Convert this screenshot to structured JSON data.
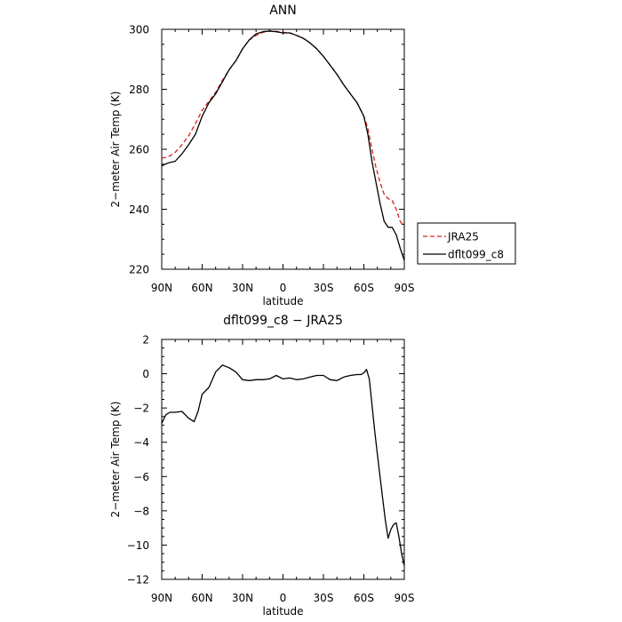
{
  "chart_data": [
    {
      "type": "line",
      "title": "ANN",
      "xlabel": "latitude",
      "ylabel": "2−meter Air Temp (K)",
      "x_tick_labels": [
        "90N",
        "60N",
        "30N",
        "0",
        "30S",
        "60S",
        "90S"
      ],
      "y_tick_labels": [
        "220",
        "240",
        "260",
        "280",
        "300"
      ],
      "xlim": [
        90,
        -90
      ],
      "ylim": [
        220,
        300
      ],
      "grid": false,
      "legend": "right",
      "series": [
        {
          "name": "JRA25",
          "color": "#d62020",
          "dash": "dashed",
          "x": [
            90,
            85,
            80,
            75,
            70,
            65,
            60,
            55,
            50,
            45,
            40,
            35,
            30,
            25,
            20,
            15,
            10,
            5,
            0,
            -5,
            -10,
            -15,
            -20,
            -25,
            -30,
            -35,
            -40,
            -45,
            -50,
            -55,
            -60,
            -63,
            -66,
            -69,
            -72,
            -75,
            -78,
            -81,
            -84,
            -87,
            -90
          ],
          "y": [
            257,
            257.5,
            259,
            261.5,
            264.5,
            268.5,
            273,
            276,
            279,
            283,
            286.5,
            289.5,
            293.5,
            296.5,
            298,
            299,
            299.5,
            299.3,
            299,
            298.8,
            298,
            297,
            295.5,
            293.5,
            291,
            288,
            285,
            281.5,
            278.5,
            275.5,
            271,
            267,
            260,
            254,
            249,
            245,
            243.5,
            243,
            240,
            236,
            234
          ]
        },
        {
          "name": "dflt099_c8",
          "color": "#000000",
          "dash": "solid",
          "x": [
            90,
            85,
            80,
            75,
            70,
            65,
            60,
            55,
            50,
            45,
            40,
            35,
            30,
            25,
            20,
            15,
            10,
            5,
            0,
            -5,
            -10,
            -15,
            -20,
            -25,
            -30,
            -35,
            -40,
            -45,
            -50,
            -55,
            -60,
            -63,
            -66,
            -69,
            -72,
            -75,
            -78,
            -81,
            -84,
            -87,
            -90
          ],
          "y": [
            254.5,
            255.5,
            256,
            258.5,
            261.5,
            265,
            271,
            275.5,
            278.5,
            282.5,
            286.5,
            289.5,
            293.5,
            296.5,
            298.5,
            299.2,
            299.4,
            299.2,
            298.8,
            298.8,
            298,
            297,
            295.5,
            293.5,
            291,
            288,
            285,
            281.5,
            278.5,
            275.5,
            271,
            265,
            256,
            249,
            242,
            236,
            234,
            234,
            231.5,
            227,
            223
          ]
        }
      ]
    },
    {
      "type": "line",
      "title": "dflt099_c8 − JRA25",
      "xlabel": "latitude",
      "ylabel": "2−meter Air Temp (K)",
      "x_tick_labels": [
        "90N",
        "60N",
        "30N",
        "0",
        "30S",
        "60S",
        "90S"
      ],
      "y_tick_labels": [
        "2",
        "0",
        "−2",
        "−4",
        "−6",
        "−8",
        "−10",
        "−12"
      ],
      "xlim": [
        90,
        -90
      ],
      "ylim": [
        -12,
        2
      ],
      "grid": false,
      "series": [
        {
          "color": "#000000",
          "dash": "solid",
          "x": [
            90,
            87,
            84,
            80,
            75,
            70,
            66,
            63,
            60,
            55,
            50,
            45,
            40,
            35,
            30,
            25,
            20,
            15,
            10,
            5,
            0,
            -5,
            -10,
            -15,
            -20,
            -25,
            -30,
            -35,
            -40,
            -45,
            -50,
            -55,
            -58,
            -60,
            -62,
            -64,
            -66,
            -68,
            -70,
            -72,
            -74,
            -76,
            -78,
            -80,
            -82,
            -84,
            -86,
            -88,
            -90
          ],
          "y": [
            -2.9,
            -2.4,
            -2.25,
            -2.25,
            -2.2,
            -2.6,
            -2.8,
            -2.2,
            -1.2,
            -0.8,
            0.1,
            0.5,
            0.35,
            0.1,
            -0.35,
            -0.4,
            -0.35,
            -0.35,
            -0.3,
            -0.1,
            -0.3,
            -0.25,
            -0.35,
            -0.3,
            -0.2,
            -0.1,
            -0.1,
            -0.35,
            -0.4,
            -0.2,
            -0.1,
            -0.05,
            -0.05,
            0.05,
            0.25,
            -0.3,
            -1.8,
            -3.3,
            -4.7,
            -6.0,
            -7.3,
            -8.6,
            -9.6,
            -9.1,
            -8.8,
            -8.7,
            -9.5,
            -10.5,
            -11.2
          ]
        }
      ]
    }
  ]
}
